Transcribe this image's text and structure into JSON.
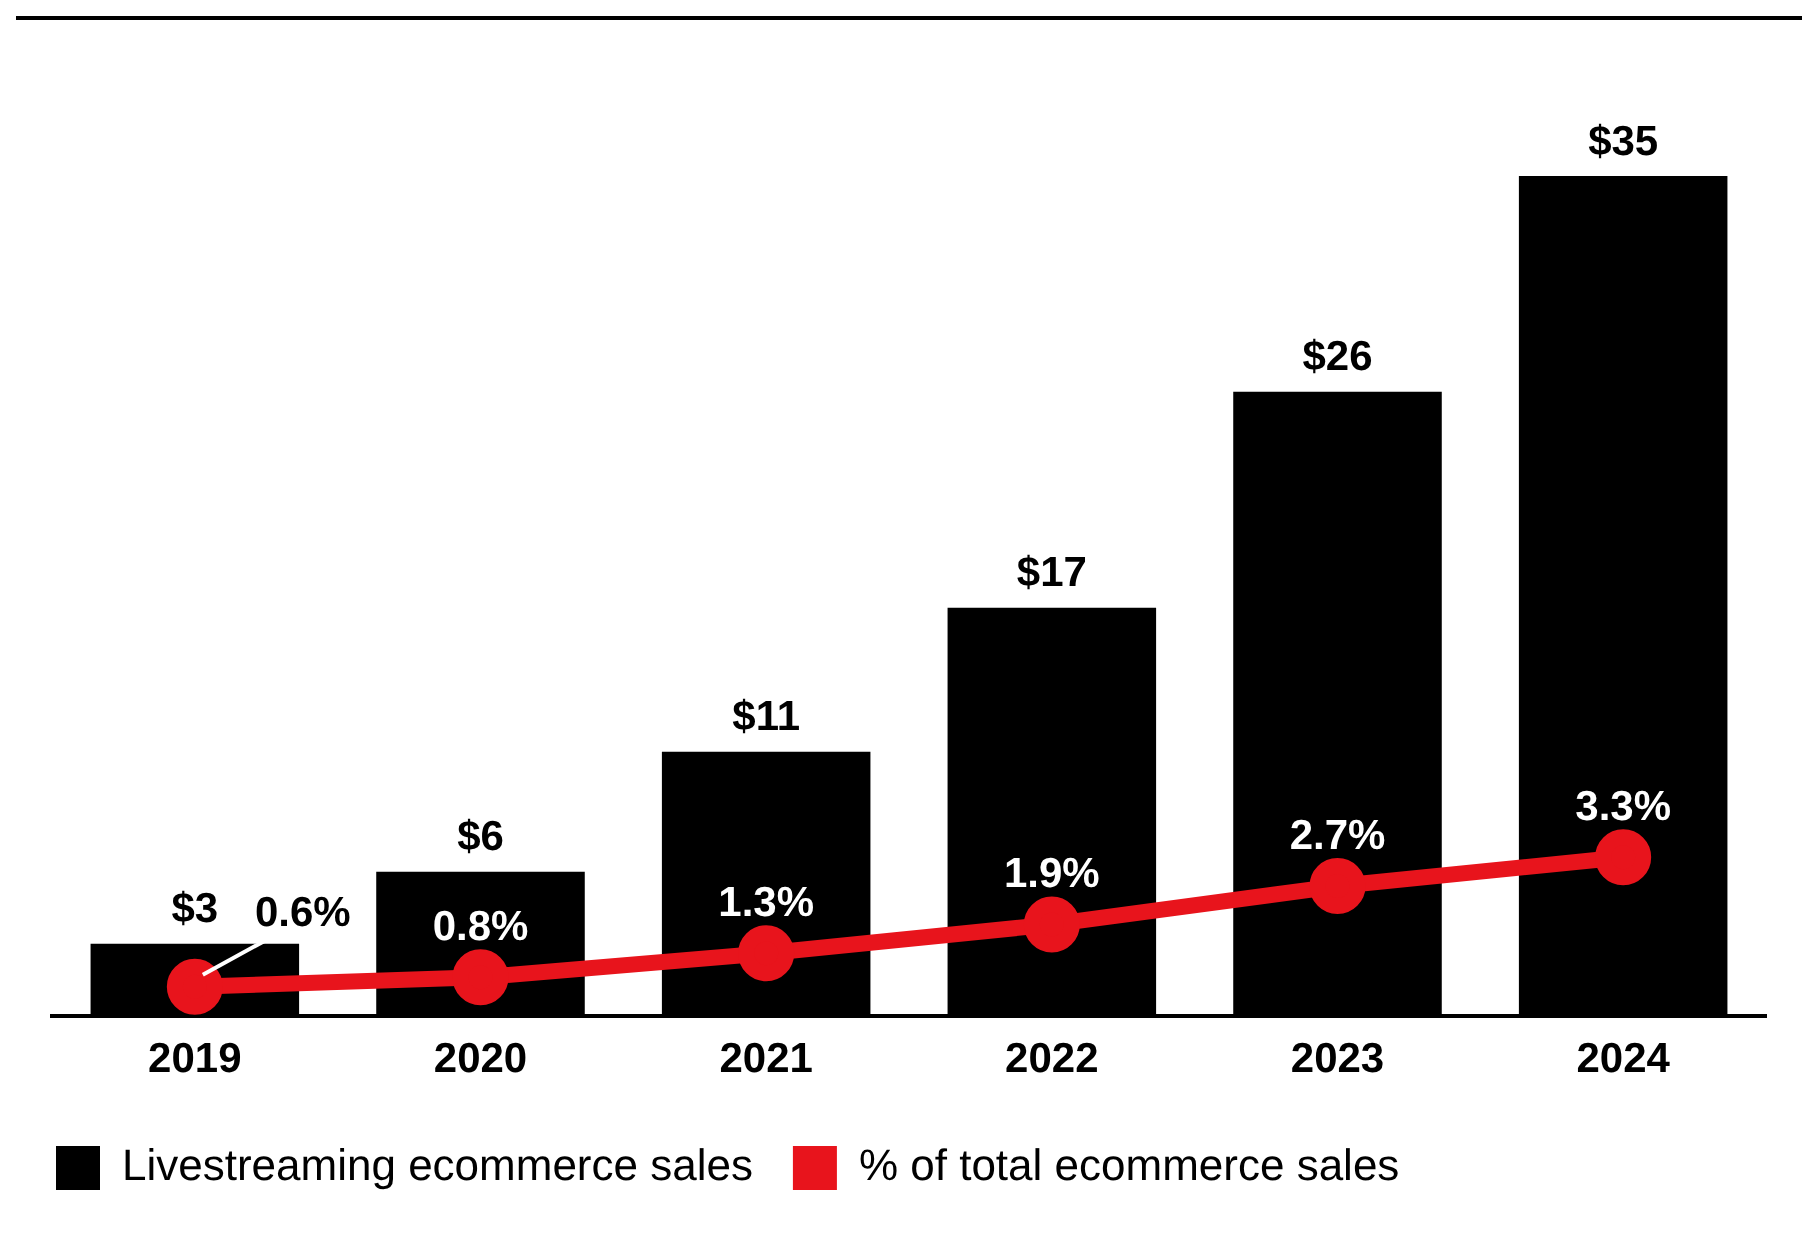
{
  "chart_data": {
    "type": "bar",
    "categories": [
      "2019",
      "2020",
      "2021",
      "2022",
      "2023",
      "2024"
    ],
    "series": [
      {
        "name": "Livestreaming ecommerce sales",
        "color": "#000000",
        "values": [
          3,
          6,
          11,
          17,
          26,
          35
        ],
        "value_labels": [
          "$3",
          "$6",
          "$11",
          "$17",
          "$26",
          "$35"
        ]
      },
      {
        "name": "% of total ecommerce sales",
        "type": "line",
        "axis": "y2",
        "color": "#e8141c",
        "marker": "circle",
        "values": [
          0.6,
          0.8,
          1.3,
          1.9,
          2.7,
          3.3
        ],
        "value_labels": [
          "0.6%",
          "0.8%",
          "1.3%",
          "1.9%",
          "2.7%",
          "3.3%"
        ]
      }
    ],
    "tick_labels": "x",
    "grid": false,
    "legend": "bottom"
  }
}
